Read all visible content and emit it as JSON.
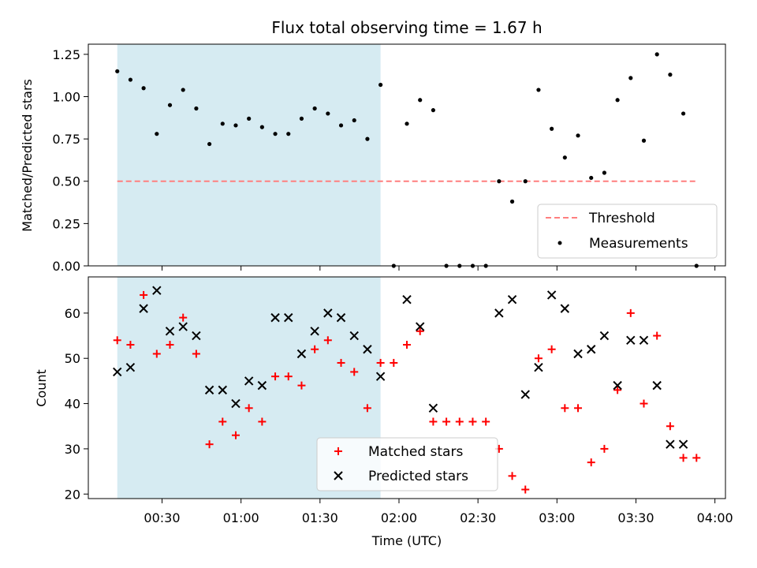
{
  "chart_data": [
    {
      "type": "scatter",
      "title": "Flux total observing time = 1.67 h",
      "ylabel": "Matched/Predicted stars",
      "xlim": [
        "00:13",
        "03:53"
      ],
      "ylim": [
        0.0,
        1.31
      ],
      "yticks": [
        "0.00",
        "0.25",
        "0.50",
        "0.75",
        "1.00",
        "1.25"
      ],
      "grid": false,
      "highlight_span": {
        "start": "00:13",
        "end": "01:53",
        "color": "#add8e6"
      },
      "legend": {
        "placement": "lower right",
        "entries": [
          "Threshold",
          "Measurements"
        ]
      },
      "series": [
        {
          "name": "Threshold",
          "style": "dashed-line",
          "color": "#ff7f7f",
          "x": [
            "00:13",
            "03:53"
          ],
          "y": [
            0.5,
            0.5
          ]
        },
        {
          "name": "Measurements",
          "style": "dot",
          "color": "#000000",
          "x": [
            "00:13",
            "00:18",
            "00:23",
            "00:28",
            "00:33",
            "00:38",
            "00:43",
            "00:48",
            "00:53",
            "00:58",
            "01:03",
            "01:08",
            "01:13",
            "01:18",
            "01:23",
            "01:28",
            "01:33",
            "01:38",
            "01:43",
            "01:48",
            "01:53",
            "01:58",
            "02:03",
            "02:08",
            "02:13",
            "02:18",
            "02:23",
            "02:28",
            "02:33",
            "02:38",
            "02:43",
            "02:48",
            "02:53",
            "02:58",
            "03:03",
            "03:08",
            "03:13",
            "03:18",
            "03:23",
            "03:28",
            "03:33",
            "03:38",
            "03:43",
            "03:48",
            "03:53"
          ],
          "y": [
            1.15,
            1.1,
            1.05,
            0.78,
            0.95,
            1.04,
            0.93,
            0.72,
            0.84,
            0.83,
            0.87,
            0.82,
            0.78,
            0.78,
            0.87,
            0.93,
            0.9,
            0.83,
            0.86,
            0.75,
            1.07,
            0.0,
            0.84,
            0.98,
            0.92,
            0.0,
            0.0,
            0.0,
            0.0,
            0.5,
            0.38,
            0.5,
            1.04,
            0.81,
            0.64,
            0.77,
            0.52,
            0.55,
            0.98,
            1.11,
            0.74,
            1.25,
            1.13,
            0.9,
            0.0
          ]
        }
      ]
    },
    {
      "type": "scatter",
      "xlabel": "Time (UTC)",
      "ylabel": "Count",
      "xlim": [
        "00:13",
        "03:53"
      ],
      "xticks": [
        "00:30",
        "01:00",
        "01:30",
        "02:00",
        "02:30",
        "03:00",
        "03:30",
        "04:00"
      ],
      "ylim": [
        19,
        68
      ],
      "yticks": [
        "20",
        "30",
        "40",
        "50",
        "60"
      ],
      "grid": false,
      "highlight_span": {
        "start": "00:13",
        "end": "01:53",
        "color": "#add8e6"
      },
      "legend": {
        "placement": "lower center",
        "entries": [
          "Matched stars",
          "Predicted stars"
        ]
      },
      "series": [
        {
          "name": "Matched stars",
          "marker": "+",
          "color": "#ff0000",
          "x": [
            "00:13",
            "00:18",
            "00:23",
            "00:28",
            "00:33",
            "00:38",
            "00:43",
            "00:48",
            "00:53",
            "00:58",
            "01:03",
            "01:08",
            "01:13",
            "01:18",
            "01:23",
            "01:28",
            "01:33",
            "01:38",
            "01:43",
            "01:48",
            "01:53",
            "01:58",
            "02:03",
            "02:08",
            "02:13",
            "02:18",
            "02:23",
            "02:28",
            "02:33",
            "02:38",
            "02:43",
            "02:48",
            "02:53",
            "02:58",
            "03:03",
            "03:08",
            "03:13",
            "03:18",
            "03:23",
            "03:28",
            "03:33",
            "03:38",
            "03:43",
            "03:48",
            "03:53"
          ],
          "y": [
            54,
            53,
            64,
            51,
            53,
            59,
            51,
            31,
            36,
            33,
            39,
            36,
            46,
            46,
            44,
            52,
            54,
            49,
            47,
            39,
            49,
            49,
            53,
            56,
            36,
            36,
            36,
            36,
            36,
            30,
            24,
            21,
            50,
            52,
            39,
            39,
            27,
            30,
            43,
            60,
            40,
            55,
            35,
            28,
            28
          ]
        },
        {
          "name": "Predicted stars",
          "marker": "x",
          "color": "#000000",
          "x": [
            "00:13",
            "00:18",
            "00:23",
            "00:28",
            "00:33",
            "00:38",
            "00:43",
            "00:48",
            "00:53",
            "00:58",
            "01:03",
            "01:08",
            "01:13",
            "01:18",
            "01:23",
            "01:28",
            "01:33",
            "01:38",
            "01:43",
            "01:48",
            "01:53",
            "02:03",
            "02:08",
            "02:13",
            "02:38",
            "02:43",
            "02:48",
            "02:53",
            "02:58",
            "03:03",
            "03:08",
            "03:13",
            "03:18",
            "03:23",
            "03:28",
            "03:33",
            "03:38",
            "03:43",
            "03:48"
          ],
          "y": [
            47,
            48,
            61,
            65,
            56,
            57,
            55,
            43,
            43,
            40,
            45,
            44,
            59,
            59,
            51,
            56,
            60,
            59,
            55,
            52,
            46,
            63,
            57,
            39,
            60,
            63,
            42,
            48,
            64,
            61,
            51,
            52,
            55,
            44,
            54,
            54,
            44,
            31,
            31
          ]
        }
      ]
    }
  ]
}
